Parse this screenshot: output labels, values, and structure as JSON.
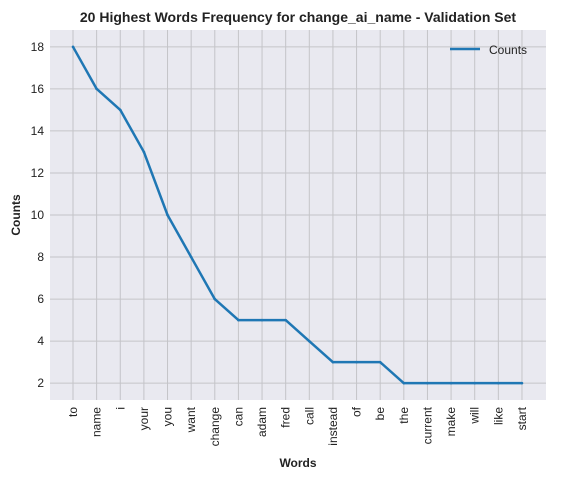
{
  "chart_data": {
    "type": "line",
    "title": "20 Highest Words Frequency for change_ai_name - Validation Set",
    "xlabel": "Words",
    "ylabel": "Counts",
    "categories": [
      "to",
      "name",
      "i",
      "your",
      "you",
      "want",
      "change",
      "can",
      "adam",
      "fred",
      "call",
      "instead",
      "of",
      "be",
      "the",
      "current",
      "make",
      "will",
      "like",
      "start"
    ],
    "series": [
      {
        "name": "Counts",
        "values": [
          18,
          16,
          15,
          13,
          10,
          8,
          6,
          5,
          5,
          5,
          4,
          3,
          3,
          3,
          2,
          2,
          2,
          2,
          2,
          2
        ],
        "color": "#1f77b4"
      }
    ],
    "ylim": [
      1.2,
      18.8
    ],
    "yticks": [
      2,
      4,
      6,
      8,
      10,
      12,
      14,
      16,
      18
    ],
    "grid": true,
    "legend_position": "top-right",
    "background_color": "#e9e9f0",
    "grid_color": "#c4c4c8"
  }
}
